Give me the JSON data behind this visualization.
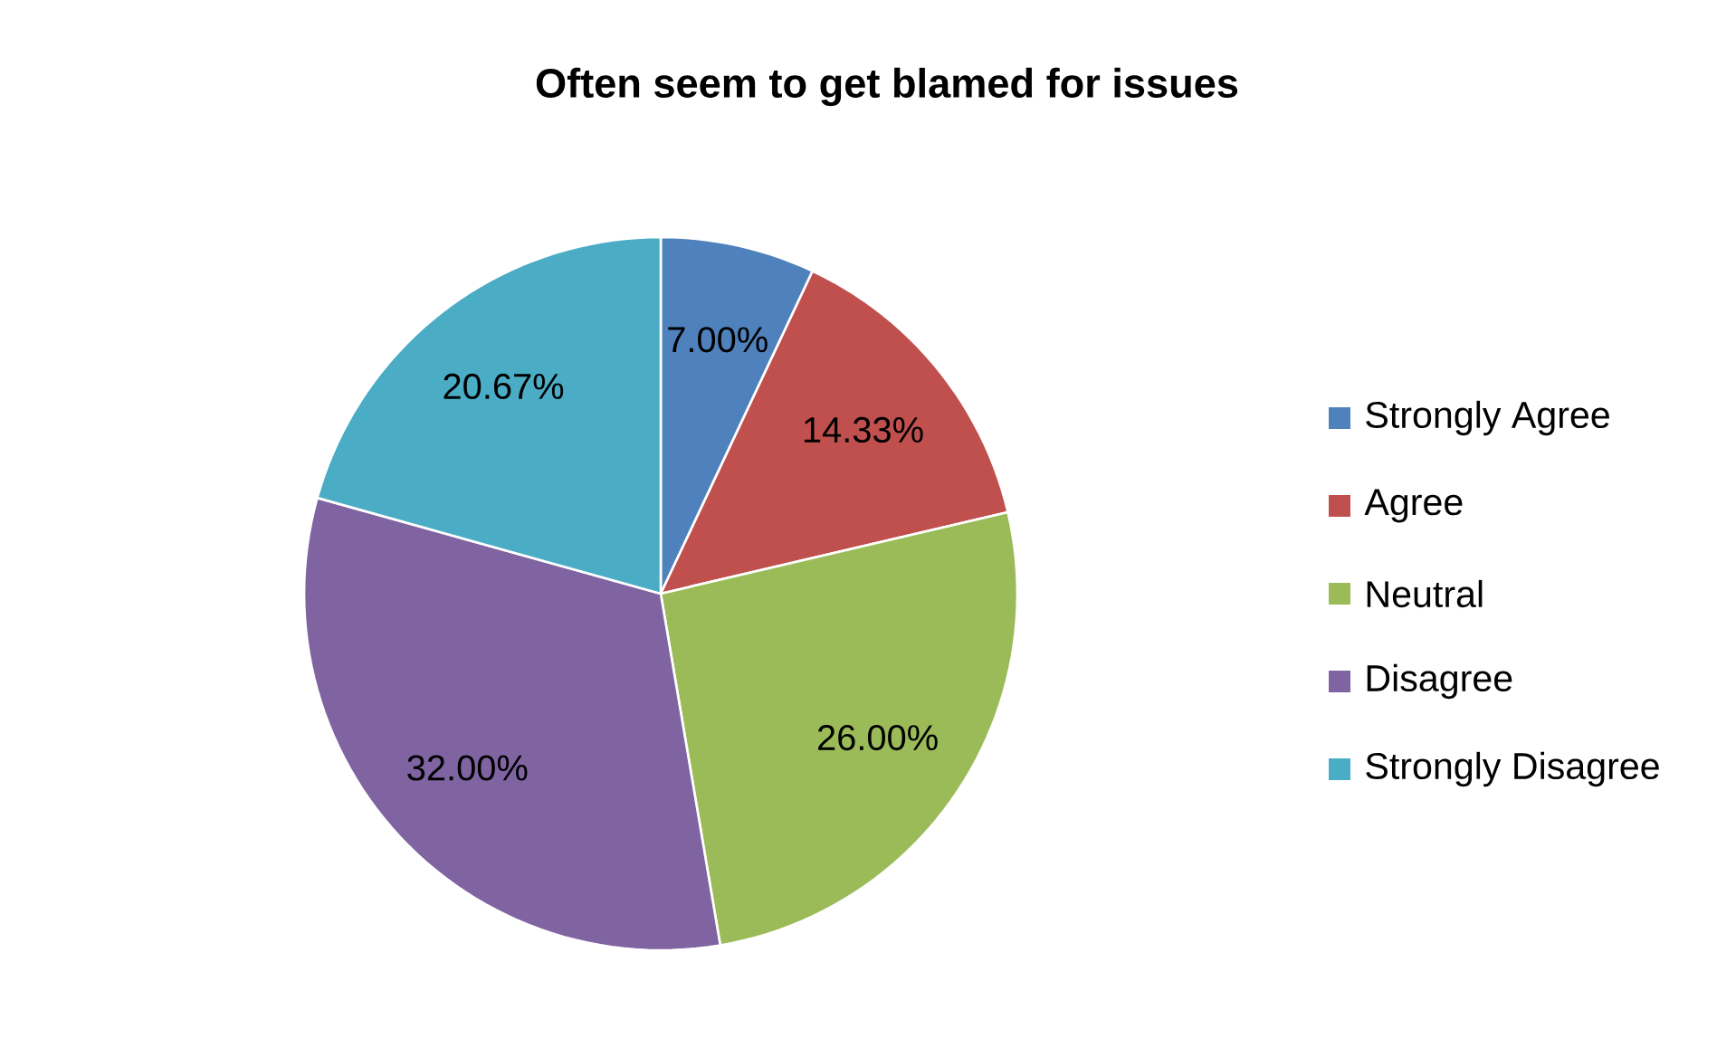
{
  "chart_data": {
    "type": "pie",
    "title": "Often seem to get blamed for issues",
    "categories": [
      "Strongly Agree",
      "Agree",
      "Neutral",
      "Disagree",
      "Strongly Disagree"
    ],
    "values": [
      7.0,
      14.33,
      26.0,
      32.0,
      20.67
    ],
    "colors": [
      "#4f81bd",
      "#c0504d",
      "#9bbb59",
      "#8064a2",
      "#4bacc6"
    ],
    "value_labels": [
      "7.00%",
      "14.33%",
      "26.00%",
      "32.00%",
      "20.67%"
    ],
    "legend": "right"
  }
}
